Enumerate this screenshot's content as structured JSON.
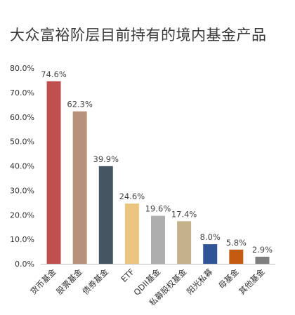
{
  "chart_data": {
    "type": "bar",
    "title": "大众富裕阶层目前持有的境内基金产品",
    "xlabel": "",
    "ylabel": "",
    "ylim": [
      0,
      80
    ],
    "y_ticks": [
      "0.0%",
      "10.0%",
      "20.0%",
      "30.0%",
      "40.0%",
      "50.0%",
      "60.0%",
      "70.0%",
      "80.0%"
    ],
    "y_tick_values": [
      0,
      10,
      20,
      30,
      40,
      50,
      60,
      70,
      80
    ],
    "categories": [
      "货币基金",
      "股票基金",
      "债券基金",
      "ETF",
      "QDII基金",
      "私募股权基金",
      "阳光私募",
      "母基金",
      "其他基金"
    ],
    "values": [
      74.6,
      62.3,
      39.9,
      24.6,
      19.6,
      17.4,
      8.0,
      5.8,
      2.9
    ],
    "value_labels": [
      "74.6%",
      "62.3%",
      "39.9%",
      "24.6%",
      "19.6%",
      "17.4%",
      "8.0%",
      "5.8%",
      "2.9%"
    ],
    "colors": [
      "#c0504d",
      "#b8917a",
      "#455562",
      "#ebc580",
      "#aeaeae",
      "#c4b28a",
      "#2f5597",
      "#c55a11",
      "#7f7f7f"
    ],
    "grid": false,
    "legend": "none"
  }
}
